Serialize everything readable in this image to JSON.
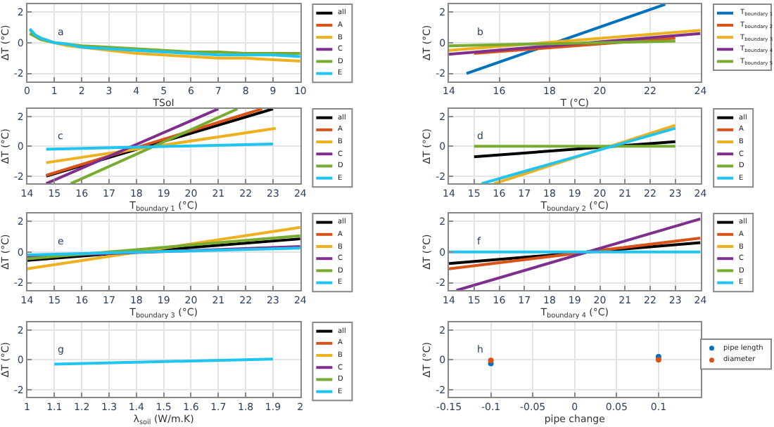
{
  "chart_data": [
    {
      "type": "line",
      "annotations": [
        "a"
      ],
      "xlabel": "TSoI",
      "ylabel": "ΔT (°C)",
      "xlim": [
        0,
        10
      ],
      "xticks": [
        0,
        1,
        2,
        3,
        4,
        5,
        6,
        7,
        8,
        9,
        10
      ],
      "ylim": [
        -2.5,
        2.5
      ],
      "yticks": [
        -2,
        0,
        2
      ],
      "grid": true,
      "legend": "right",
      "x": [
        0.1,
        0.3,
        0.5,
        1,
        1.5,
        2,
        3,
        4,
        5,
        6,
        7,
        8,
        9,
        10
      ],
      "series": [
        {
          "name": "all",
          "color": "#000000",
          "values": [
            null,
            null,
            null,
            null,
            null,
            null,
            null,
            null,
            null,
            null,
            null,
            null,
            null,
            null
          ]
        },
        {
          "name": "A",
          "color": "#d95319",
          "values": [
            null,
            null,
            null,
            null,
            null,
            null,
            null,
            null,
            null,
            null,
            null,
            null,
            null,
            null
          ]
        },
        {
          "name": "B",
          "color": "#edb120",
          "values": [
            0.8,
            0.5,
            0.3,
            0.0,
            -0.2,
            -0.3,
            -0.5,
            -0.7,
            -0.8,
            -0.9,
            -1.0,
            -1.0,
            -1.1,
            -1.2
          ]
        },
        {
          "name": "C",
          "color": "#7e2f8e",
          "values": [
            null,
            null,
            null,
            null,
            null,
            null,
            null,
            null,
            null,
            null,
            null,
            null,
            null,
            null
          ]
        },
        {
          "name": "D",
          "color": "#77ac30",
          "values": [
            0.6,
            0.4,
            0.2,
            0.0,
            -0.1,
            -0.2,
            -0.3,
            -0.4,
            -0.5,
            -0.6,
            -0.6,
            -0.7,
            -0.7,
            -0.7
          ]
        },
        {
          "name": "E",
          "color": "#1fc4f0",
          "values": [
            0.9,
            0.5,
            0.3,
            0.0,
            -0.1,
            -0.3,
            -0.4,
            -0.5,
            -0.6,
            -0.7,
            -0.8,
            -0.8,
            -0.8,
            -0.9
          ]
        }
      ]
    },
    {
      "type": "line",
      "annotations": [
        "b"
      ],
      "xlabel": "T (°C)",
      "ylabel": "ΔT (°C)",
      "xlim": [
        14,
        24
      ],
      "xticks": [
        14,
        16,
        18,
        20,
        22,
        24
      ],
      "ylim": [
        -2.5,
        2.5
      ],
      "yticks": [
        -2,
        0,
        2
      ],
      "grid": true,
      "legend": "right",
      "series": [
        {
          "name": "T$_{boundary 1}$",
          "color": "#0072bd",
          "x": [
            14.7,
            22.6
          ],
          "values": [
            -2.0,
            2.5
          ]
        },
        {
          "name": "T$_{boundary 2}$",
          "color": "#d95319",
          "x": [
            15,
            23
          ],
          "values": [
            -0.7,
            0.3
          ]
        },
        {
          "name": "T$_{boundary 3}$",
          "color": "#edb120",
          "x": [
            14,
            24
          ],
          "values": [
            -0.5,
            0.8
          ]
        },
        {
          "name": "T$_{boundary 4}$",
          "color": "#7e2f8e",
          "x": [
            14,
            24
          ],
          "values": [
            -0.75,
            0.6
          ]
        },
        {
          "name": "T$_{boundary 5}$",
          "color": "#77ac30",
          "x": [
            14,
            23
          ],
          "values": [
            -0.2,
            0.1
          ]
        }
      ]
    },
    {
      "type": "line",
      "annotations": [
        "c"
      ],
      "xlabel": "T$_{boundary 1}$ (°C)",
      "ylabel": "ΔT (°C)",
      "xlim": [
        14,
        24
      ],
      "xticks": [
        14,
        15,
        16,
        17,
        18,
        19,
        20,
        21,
        22,
        23,
        24
      ],
      "ylim": [
        -2.5,
        2.5
      ],
      "yticks": [
        -2,
        0,
        2
      ],
      "grid": true,
      "legend": "right",
      "series": [
        {
          "name": "all",
          "color": "#000000",
          "x": [
            14.7,
            23
          ],
          "values": [
            -2.0,
            2.5
          ]
        },
        {
          "name": "A",
          "color": "#d95319",
          "x": [
            14.7,
            22.6
          ],
          "values": [
            -1.95,
            2.5
          ]
        },
        {
          "name": "B",
          "color": "#edb120",
          "x": [
            14.7,
            23.1
          ],
          "values": [
            -1.1,
            1.2
          ]
        },
        {
          "name": "C",
          "color": "#7e2f8e",
          "x": [
            14.7,
            21
          ],
          "values": [
            -2.5,
            2.5
          ]
        },
        {
          "name": "D",
          "color": "#77ac30",
          "x": [
            15.6,
            21.7
          ],
          "values": [
            -2.5,
            2.5
          ]
        },
        {
          "name": "E",
          "color": "#1fc4f0",
          "x": [
            14.7,
            23
          ],
          "values": [
            -0.2,
            0.15
          ]
        }
      ]
    },
    {
      "type": "line",
      "annotations": [
        "d"
      ],
      "xlabel": "T$_{boundary 2}$ (°C)",
      "ylabel": "ΔT (°C)",
      "xlim": [
        14,
        24
      ],
      "xticks": [
        14,
        15,
        16,
        17,
        18,
        19,
        20,
        21,
        22,
        23,
        24
      ],
      "ylim": [
        -2.5,
        2.5
      ],
      "yticks": [
        -2,
        0,
        2
      ],
      "grid": true,
      "legend": "right",
      "series": [
        {
          "name": "all",
          "color": "#000000",
          "x": [
            15,
            23
          ],
          "values": [
            -0.7,
            0.3
          ]
        },
        {
          "name": "A",
          "color": "#d95319",
          "values": [
            null,
            null
          ]
        },
        {
          "name": "B",
          "color": "#edb120",
          "x": [
            15.8,
            23
          ],
          "values": [
            -2.5,
            1.4
          ]
        },
        {
          "name": "C",
          "color": "#7e2f8e",
          "values": [
            null,
            null
          ]
        },
        {
          "name": "D",
          "color": "#77ac30",
          "x": [
            15,
            23
          ],
          "values": [
            0,
            0
          ]
        },
        {
          "name": "E",
          "color": "#1fc4f0",
          "x": [
            15.3,
            23
          ],
          "values": [
            -2.5,
            1.2
          ]
        }
      ]
    },
    {
      "type": "line",
      "annotations": [
        "e"
      ],
      "xlabel": "T$_{boundary 3}$ (°C)",
      "ylabel": "ΔT (°C)",
      "xlim": [
        14,
        24
      ],
      "xticks": [
        14,
        15,
        16,
        17,
        18,
        19,
        20,
        21,
        22,
        23,
        24
      ],
      "ylim": [
        -2.5,
        2.5
      ],
      "yticks": [
        -2,
        0,
        2
      ],
      "grid": true,
      "legend": "right",
      "x": [
        14,
        24
      ],
      "series": [
        {
          "name": "all",
          "color": "#000000",
          "values": [
            -0.55,
            0.85
          ]
        },
        {
          "name": "A",
          "color": "#d95319",
          "values": [
            null,
            null
          ]
        },
        {
          "name": "B",
          "color": "#edb120",
          "values": [
            -1.1,
            1.6
          ]
        },
        {
          "name": "C",
          "color": "#7e2f8e",
          "values": [
            -0.3,
            0.35
          ]
        },
        {
          "name": "D",
          "color": "#77ac30",
          "values": [
            -0.45,
            1.05
          ]
        },
        {
          "name": "E",
          "color": "#1fc4f0",
          "values": [
            -0.2,
            0.25
          ]
        }
      ]
    },
    {
      "type": "line",
      "annotations": [
        "f"
      ],
      "xlabel": "T$_{boundary 4}$ (°C)",
      "ylabel": "ΔT (°C)",
      "xlim": [
        14,
        24
      ],
      "xticks": [
        14,
        15,
        16,
        17,
        18,
        19,
        20,
        21,
        22,
        23,
        24
      ],
      "ylim": [
        -2.5,
        2.5
      ],
      "yticks": [
        -2,
        0,
        2
      ],
      "grid": true,
      "legend": "right",
      "series": [
        {
          "name": "all",
          "color": "#000000",
          "x": [
            14,
            24
          ],
          "values": [
            -0.75,
            0.6
          ]
        },
        {
          "name": "A",
          "color": "#d95319",
          "x": [
            14,
            24
          ],
          "values": [
            -1.1,
            0.9
          ]
        },
        {
          "name": "B",
          "color": "#edb120",
          "values": [
            null,
            null
          ]
        },
        {
          "name": "C",
          "color": "#7e2f8e",
          "x": [
            14.3,
            24
          ],
          "values": [
            -2.5,
            2.15
          ]
        },
        {
          "name": "D",
          "color": "#77ac30",
          "values": [
            null,
            null
          ]
        },
        {
          "name": "E",
          "color": "#1fc4f0",
          "x": [
            14,
            24
          ],
          "values": [
            0,
            0
          ]
        }
      ]
    },
    {
      "type": "line",
      "annotations": [
        "g"
      ],
      "xlabel": "λ$_{soil}$ (W/m.K)",
      "ylabel": "ΔT (°C)",
      "xlim": [
        1,
        2
      ],
      "xticks": [
        1,
        1.1,
        1.2,
        1.3,
        1.4,
        1.5,
        1.6,
        1.7,
        1.8,
        1.9,
        2
      ],
      "ylim": [
        -2.5,
        2.5
      ],
      "yticks": [
        -2,
        0,
        2
      ],
      "grid": true,
      "legend": "right",
      "x": [
        1.1,
        1.9
      ],
      "series": [
        {
          "name": "all",
          "color": "#000000",
          "values": [
            null,
            null
          ]
        },
        {
          "name": "A",
          "color": "#d95319",
          "values": [
            null,
            null
          ]
        },
        {
          "name": "B",
          "color": "#edb120",
          "values": [
            null,
            null
          ]
        },
        {
          "name": "C",
          "color": "#7e2f8e",
          "values": [
            null,
            null
          ]
        },
        {
          "name": "D",
          "color": "#77ac30",
          "values": [
            null,
            null
          ]
        },
        {
          "name": "E",
          "color": "#1fc4f0",
          "values": [
            -0.3,
            0.05
          ]
        }
      ]
    },
    {
      "type": "scatter",
      "annotations": [
        "h"
      ],
      "xlabel": "pipe change",
      "ylabel": "ΔT (°C)",
      "xlim": [
        -0.15,
        0.15
      ],
      "xticks": [
        -0.15,
        -0.1,
        -0.05,
        0,
        0.05,
        0.1
      ],
      "ylim": [
        -2.5,
        2.5
      ],
      "yticks": [
        -2,
        0,
        2
      ],
      "grid": true,
      "legend": "right",
      "marker": "circle",
      "x": [
        -0.1,
        0.1
      ],
      "series": [
        {
          "name": "pipe length",
          "color": "#0072bd",
          "values": [
            -0.25,
            0.2
          ]
        },
        {
          "name": "diameter",
          "color": "#d95319",
          "values": [
            -0.05,
            0.0
          ]
        }
      ]
    }
  ]
}
